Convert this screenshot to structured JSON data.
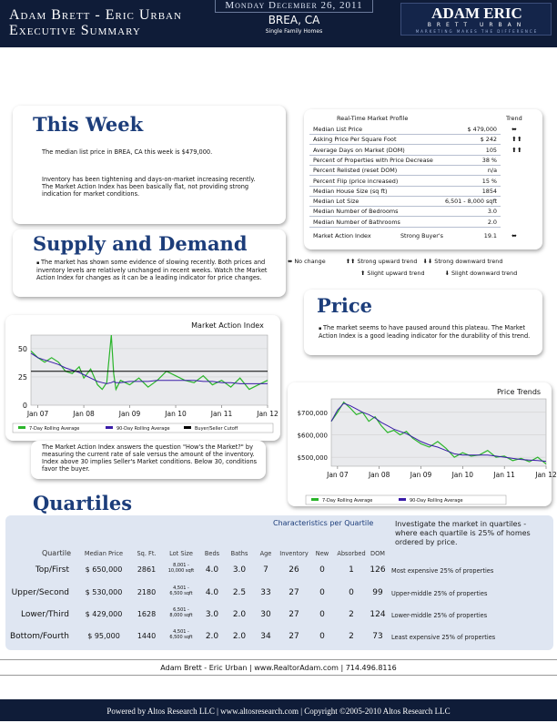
{
  "header": {
    "title_line1": "Adam Brett - Eric Urban",
    "title_line2": "Executive Summary",
    "date": "Monday December 26, 2011",
    "city": "BREA, CA",
    "property_type": "Single Family Homes",
    "logo_main": "ADAM ERIC",
    "logo_sub": "BRETT URBAN",
    "logo_tagline": "MARKETING MAKES THE DIFFERENCE"
  },
  "this_week": {
    "title": "This Week",
    "median_text": "The median list price in BREA, CA this week is $479,000.",
    "inventory_text": "Inventory has been tightening and days-on-market increasing recently. The Market Action Index has been basically flat, not providing strong indication for market conditions."
  },
  "market_profile": {
    "title": "Real-Time Market Profile",
    "trend_header": "Trend",
    "rows": [
      {
        "label": "Median List Price",
        "value": "$ 479,000",
        "trend": "⬌"
      },
      {
        "label": "Asking Price Per Square Foot",
        "value": "$ 242",
        "trend": "⬆⬆"
      },
      {
        "label": "Average Days on Market (DOM)",
        "value": "105",
        "trend": "⬆⬆"
      },
      {
        "label": "Percent of Properties with Price Decrease",
        "value": "38 %",
        "trend": ""
      },
      {
        "label": "Percent Relisted (reset DOM)",
        "value": "n/a",
        "trend": ""
      },
      {
        "label": "Percent Flip (price increased)",
        "value": "15 %",
        "trend": ""
      },
      {
        "label": "Median House Size (sq ft)",
        "value": "1854",
        "trend": ""
      },
      {
        "label": "Median Lot Size",
        "value": "6,501 - 8,000 sqft",
        "trend": ""
      },
      {
        "label": "Median Number of Bedrooms",
        "value": "3.0",
        "trend": ""
      },
      {
        "label": "Median Number of Bathrooms",
        "value": "2.0",
        "trend": ""
      }
    ],
    "mai_row": {
      "label": "Market Action Index",
      "middle": "Strong Buyer's",
      "value": "19.1",
      "trend": "⬌"
    }
  },
  "trend_legend": {
    "no_change": "No change",
    "strong_up": "Strong upward trend",
    "strong_down": "Strong downward trend",
    "slight_up": "Slight upward trend",
    "slight_down": "Slight downward trend"
  },
  "supply_demand": {
    "title": "Supply and Demand",
    "text": "The market has shown some evidence of slowing recently.  Both prices and inventory levels are relatively unchanged in recent weeks. Watch the Market Action Index for changes as it can be a leading indicator for price changes.",
    "mai_explain": "The Market Action Index answers the question \"How's the Market?\" by measuring the current rate of sale versus the amount of the inventory.  Index above 30 implies Seller's Market conditions. Below 30, conditions favor the buyer."
  },
  "price": {
    "title": "Price",
    "text": "The market seems to have paused around this plateau. The Market Action Index is a good leading indicator for the durability of this trend."
  },
  "chart_data": [
    {
      "type": "line",
      "title": "Market Action Index",
      "x_ticks": [
        "Jan 07",
        "Jan 08",
        "Jan 09",
        "Jan 10",
        "Jan 11",
        "Jan 12"
      ],
      "y_ticks": [
        "0",
        "25",
        "50"
      ],
      "ylim": [
        0,
        62
      ],
      "x": [
        2006.85,
        2007.0,
        2007.15,
        2007.3,
        2007.45,
        2007.6,
        2007.75,
        2007.9,
        2008.0,
        2008.15,
        2008.3,
        2008.4,
        2008.5,
        2008.6,
        2008.65,
        2008.7,
        2008.8,
        2009.0,
        2009.2,
        2009.4,
        2009.6,
        2009.8,
        2010.0,
        2010.2,
        2010.4,
        2010.6,
        2010.8,
        2011.0,
        2011.2,
        2011.4,
        2011.6,
        2011.8,
        2012.0
      ],
      "series": [
        {
          "name": "7-Day Rolling Average",
          "color": "#2bb52b",
          "values": [
            48,
            42,
            38,
            42,
            38,
            30,
            28,
            34,
            24,
            32,
            18,
            14,
            20,
            62,
            28,
            14,
            22,
            18,
            24,
            16,
            22,
            30,
            26,
            22,
            20,
            26,
            18,
            22,
            16,
            24,
            14,
            18,
            22
          ]
        },
        {
          "name": "90-Day Rolling Average",
          "color": "#3a1ca8",
          "values": [
            46,
            42,
            40,
            38,
            36,
            33,
            31,
            29,
            27,
            24,
            21,
            20,
            19,
            20,
            21,
            20,
            20,
            21,
            21,
            21,
            22,
            22,
            22,
            22,
            22,
            21,
            21,
            20,
            20,
            19,
            19,
            19,
            19
          ]
        },
        {
          "name": "Buyer/Seller Cutoff",
          "color": "#000000",
          "values": [
            30,
            30,
            30,
            30,
            30,
            30,
            30,
            30,
            30,
            30,
            30,
            30,
            30,
            30,
            30,
            30,
            30,
            30,
            30,
            30,
            30,
            30,
            30,
            30,
            30,
            30,
            30,
            30,
            30,
            30,
            30,
            30,
            30
          ]
        }
      ]
    },
    {
      "type": "line",
      "title": "Price Trends",
      "x_ticks": [
        "Jan 07",
        "Jan 08",
        "Jan 09",
        "Jan 10",
        "Jan 11",
        "Jan 12"
      ],
      "y_ticks": [
        "$500,000",
        "$600,000",
        "$700,000"
      ],
      "ylim": [
        460000,
        760000
      ],
      "x": [
        2006.85,
        2007.0,
        2007.15,
        2007.3,
        2007.45,
        2007.6,
        2007.75,
        2007.9,
        2008.05,
        2008.2,
        2008.35,
        2008.5,
        2008.65,
        2008.8,
        2009.0,
        2009.2,
        2009.4,
        2009.6,
        2009.8,
        2010.0,
        2010.2,
        2010.4,
        2010.6,
        2010.8,
        2011.0,
        2011.2,
        2011.4,
        2011.6,
        2011.8,
        2012.0
      ],
      "series": [
        {
          "name": "7-Day Rolling Average",
          "color": "#2bb52b",
          "values": [
            660000,
            700000,
            745000,
            720000,
            690000,
            700000,
            660000,
            680000,
            640000,
            610000,
            620000,
            600000,
            615000,
            585000,
            560000,
            545000,
            570000,
            540000,
            500000,
            520000,
            505000,
            510000,
            530000,
            500000,
            505000,
            485000,
            495000,
            480000,
            500000,
            470000
          ]
        },
        {
          "name": "90-Day Rolling Average",
          "color": "#3a1ca8",
          "values": [
            660000,
            710000,
            740000,
            730000,
            715000,
            700000,
            690000,
            675000,
            655000,
            640000,
            625000,
            615000,
            605000,
            590000,
            570000,
            555000,
            545000,
            530000,
            515000,
            510000,
            510000,
            510000,
            510000,
            505000,
            500000,
            495000,
            490000,
            487000,
            485000,
            482000
          ]
        }
      ]
    }
  ],
  "quartiles": {
    "title": "Quartiles",
    "characteristics_title": "Characteristics per Quartile",
    "intro": "Investigate the market in quartiles - where each quartile is 25% of homes ordered by price.",
    "headers": {
      "quartile": "Quartile",
      "median_price": "Median Price",
      "sqft": "Sq. Ft.",
      "lot": "Lot Size",
      "beds": "Beds",
      "baths": "Baths",
      "age": "Age",
      "inventory": "Inventory",
      "new": "New",
      "absorbed": "Absorbed",
      "dom": "DOM"
    },
    "rows": [
      {
        "name": "Top/First",
        "price": "$ 650,000",
        "sqft": "2861",
        "lot_1": "8,001 -",
        "lot_2": "10,000 sqft",
        "beds": "4.0",
        "baths": "3.0",
        "age": "7",
        "inventory": "26",
        "new": "0",
        "absorbed": "1",
        "dom": "126",
        "desc": "Most expensive 25% of properties"
      },
      {
        "name": "Upper/Second",
        "price": "$ 530,000",
        "sqft": "2180",
        "lot_1": "4,501 -",
        "lot_2": "6,500 sqft",
        "beds": "4.0",
        "baths": "2.5",
        "age": "33",
        "inventory": "27",
        "new": "0",
        "absorbed": "0",
        "dom": "99",
        "desc": "Upper-middle 25% of properties"
      },
      {
        "name": "Lower/Third",
        "price": "$ 429,000",
        "sqft": "1628",
        "lot_1": "6,501 -",
        "lot_2": "8,000 sqft",
        "beds": "3.0",
        "baths": "2.0",
        "age": "30",
        "inventory": "27",
        "new": "0",
        "absorbed": "2",
        "dom": "124",
        "desc": "Lower-middle 25% of properties"
      },
      {
        "name": "Bottom/Fourth",
        "price": "$ 95,000",
        "sqft": "1440",
        "lot_1": "4,501 -",
        "lot_2": "6,500 sqft",
        "beds": "2.0",
        "baths": "2.0",
        "age": "34",
        "inventory": "27",
        "new": "0",
        "absorbed": "2",
        "dom": "73",
        "desc": "Least expensive 25% of properties"
      }
    ]
  },
  "footer": {
    "contact": "Adam Brett - Eric Urban | www.RealtorAdam.com | 714.496.8116",
    "powered": "Powered by Altos Research LLC | www.altosresearch.com | Copyright ©2005-2010 Altos Research LLC"
  },
  "colors": {
    "navy": "#0f1c38",
    "title_blue": "#1c3d7a",
    "green": "#2bb52b",
    "purple": "#3a1ca8"
  }
}
